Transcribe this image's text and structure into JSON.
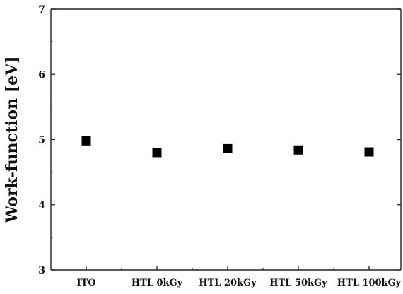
{
  "chart_data": {
    "type": "scatter",
    "title": "",
    "xlabel": "",
    "ylabel": "Work-function [eV]",
    "categories": [
      "ITO",
      "HTL 0kGy",
      "HTL 20kGy",
      "HTL 50kGy",
      "HTL 100kGy"
    ],
    "values": [
      4.98,
      4.8,
      4.86,
      4.84,
      4.81
    ],
    "ylim": [
      3,
      7
    ],
    "yticks": [
      3,
      4,
      5,
      6,
      7
    ],
    "marker": "square",
    "marker_color": "#000000",
    "grid": false,
    "legend": "none"
  }
}
